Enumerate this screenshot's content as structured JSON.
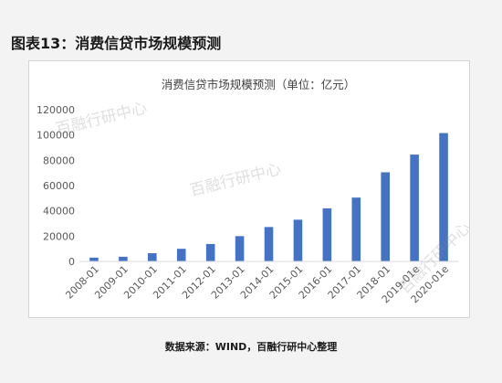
{
  "figure_title": "图表13：消费信贷市场规模预测",
  "source_note": "数据来源：WIND，百融行研中心整理",
  "watermark": "百融行研中心",
  "colors": {
    "bar": "#4472c4",
    "axis": "#d9d9d9",
    "tick_text": "#595959"
  },
  "chart_data": {
    "type": "bar",
    "title": "消费信贷市场规模预测（单位：亿元）",
    "xlabel": "",
    "ylabel": "",
    "categories": [
      "2008-01",
      "2009-01",
      "2010-01",
      "2011-01",
      "2012-01",
      "2013-01",
      "2014-01",
      "2015-01",
      "2016-01",
      "2017-01",
      "2018-01",
      "2019-01e",
      "2020-01e"
    ],
    "values": [
      3000,
      3700,
      6500,
      10000,
      13800,
      20000,
      27200,
      33000,
      42000,
      50500,
      70500,
      84500,
      101500
    ],
    "ylim": [
      0,
      120000
    ],
    "yticks": [
      0,
      20000,
      40000,
      60000,
      80000,
      100000,
      120000
    ],
    "grid": false,
    "legend": "none"
  }
}
